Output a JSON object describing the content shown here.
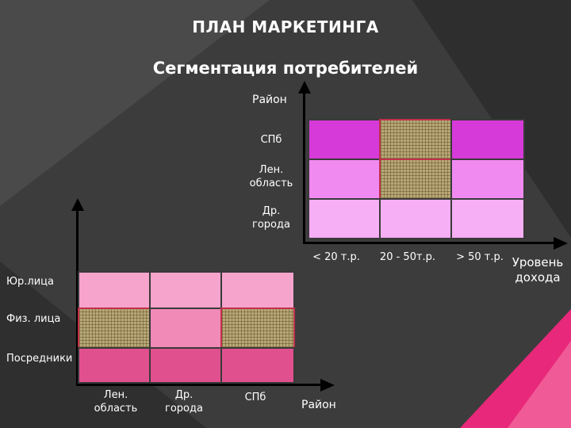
{
  "title": "ПЛАН МАРКЕТИНГА",
  "subtitle": "Сегментация потребителей",
  "top_diagram": {
    "y_axis_label": "Район",
    "x_axis_label_line1": "Уровень",
    "x_axis_label_line2": "дохода",
    "rows": [
      {
        "label": "СПб"
      },
      {
        "label_line1": "Лен.",
        "label_line2": "область"
      },
      {
        "label_line1": "Др.",
        "label_line2": "города"
      }
    ],
    "columns": [
      "< 20 т.р.",
      "20  - 50т.р.",
      "> 50 т.р."
    ],
    "highlighted": [
      [
        0,
        1
      ],
      [
        1,
        1
      ]
    ],
    "row_colors": [
      "#d63ad8",
      "#f08af0",
      "#f6aef4"
    ]
  },
  "bottom_diagram": {
    "x_axis_label": "Район",
    "rows": [
      "Юр.лица",
      "Физ. лица",
      "Посредники"
    ],
    "columns": [
      {
        "line1": "Лен.",
        "line2": "область"
      },
      {
        "line1": "Др.",
        "line2": "города"
      },
      {
        "line1": "СПб",
        "line2": ""
      }
    ],
    "highlighted": [
      [
        1,
        0
      ],
      [
        1,
        2
      ]
    ],
    "row_colors": [
      "#f6a4cc",
      "#f28ab8",
      "#e0508e"
    ]
  },
  "colors": {
    "accent": "#e8287a",
    "selection_border": "#c0304a"
  }
}
